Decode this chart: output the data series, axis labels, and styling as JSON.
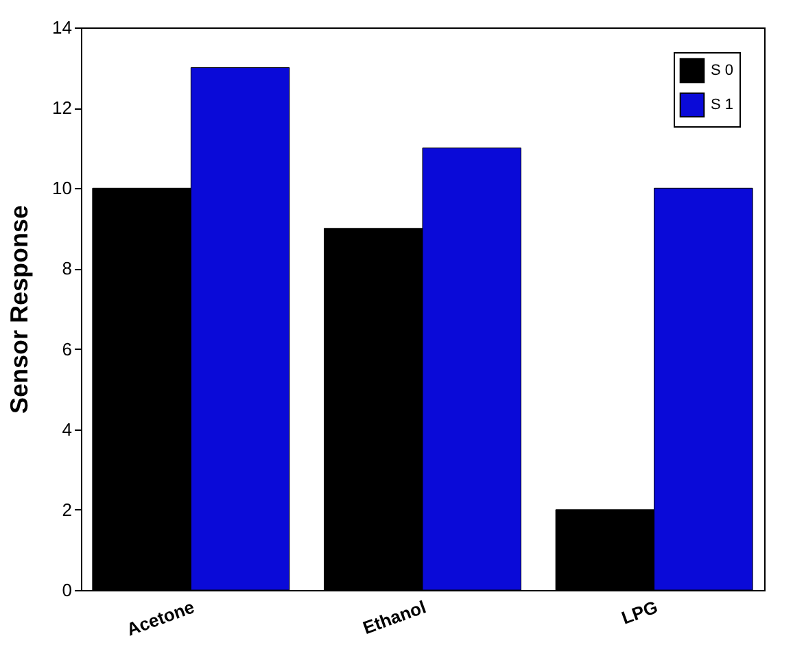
{
  "chart_data": {
    "type": "bar",
    "ylabel": "Sensor Response",
    "categories": [
      "Acetone",
      "Ethanol",
      "LPG"
    ],
    "series": [
      {
        "name": "S 0",
        "color": "#000000",
        "values": [
          10,
          9,
          2
        ]
      },
      {
        "name": "S 1",
        "color": "#0a0ad8",
        "values": [
          13,
          11,
          10
        ]
      }
    ],
    "ylim": [
      0,
      14
    ],
    "yticks": [
      0,
      2,
      4,
      6,
      8,
      10,
      12,
      14
    ],
    "grid": false,
    "legend": "top right"
  }
}
